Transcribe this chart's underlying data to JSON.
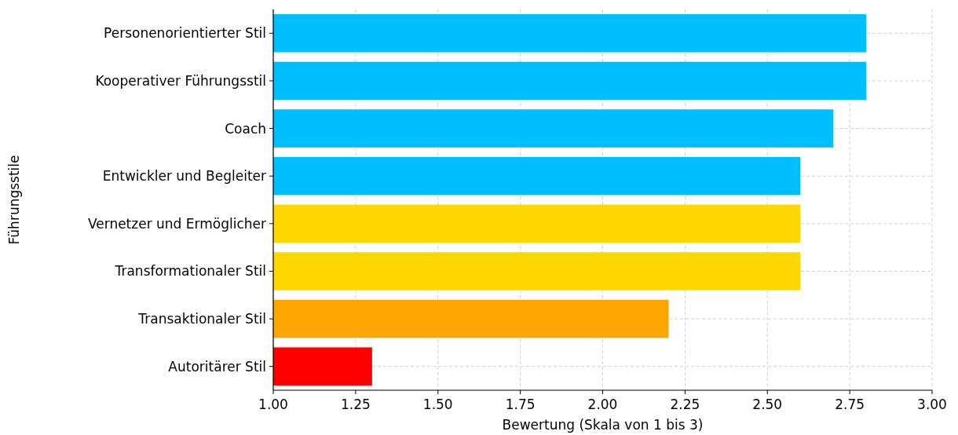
{
  "chart_data": {
    "type": "bar",
    "orientation": "horizontal",
    "xlabel": "Bewertung (Skala von 1 bis 3)",
    "ylabel": "Führungsstile",
    "categories": [
      "Personenorientierter Stil",
      "Kooperativer Führungsstil",
      "Coach",
      "Entwickler und Begleiter",
      "Vernetzer und Ermöglicher",
      "Transformationaler Stil",
      "Transaktionaler Stil",
      "Autoritärer Stil"
    ],
    "values": [
      2.8,
      2.8,
      2.7,
      2.6,
      2.6,
      2.6,
      2.2,
      1.3
    ],
    "colors": [
      "#00bfff",
      "#00bfff",
      "#00bfff",
      "#00bfff",
      "#ffd700",
      "#ffd700",
      "#ffa500",
      "#ff0000"
    ],
    "xlim": [
      1,
      3
    ],
    "xticks": [
      {
        "value": 1,
        "label": "1.00"
      },
      {
        "value": 1.25,
        "label": "1.25"
      },
      {
        "value": 1.5,
        "label": "1.50"
      },
      {
        "value": 1.75,
        "label": "1.75"
      },
      {
        "value": 2,
        "label": "2.00"
      },
      {
        "value": 2.25,
        "label": "2.25"
      },
      {
        "value": 2.5,
        "label": "2.50"
      },
      {
        "value": 2.75,
        "label": "2.75"
      },
      {
        "value": 3,
        "label": "3.00"
      }
    ],
    "grid": true
  }
}
